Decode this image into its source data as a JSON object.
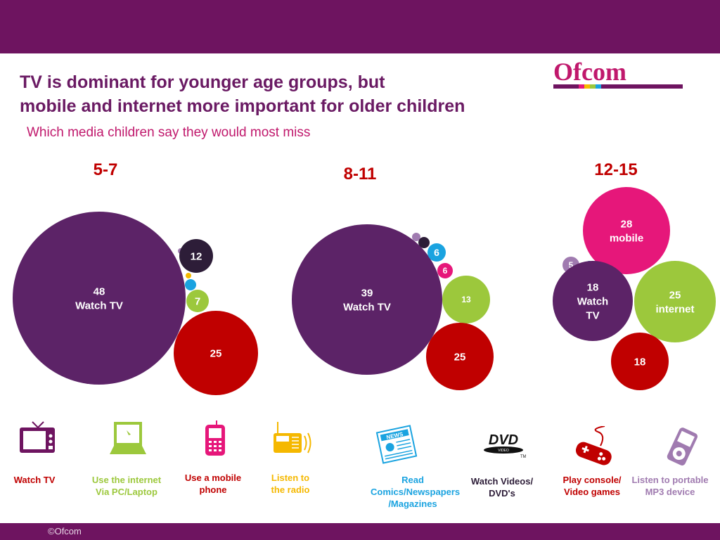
{
  "header": {
    "title_line1": "TV is dominant for younger age groups, but",
    "title_line2": "mobile and internet more important for older children",
    "subtitle": "Which media children say they would most miss",
    "logo_text": "Ofcom"
  },
  "footer": {
    "copyright": "©Ofcom"
  },
  "colors": {
    "watch_tv": "#5c2367",
    "internet": "#9cc83c",
    "mobile": "#e6177a",
    "radio": "#f5b800",
    "comics": "#1aa3e0",
    "dvd": "#2d1d38",
    "console": "#c00000",
    "mp3": "#a07bb0"
  },
  "chart_data": [
    {
      "type": "bubble",
      "group": "5-7",
      "series": [
        {
          "category": "Watch TV",
          "value": 48,
          "label": "48\nWatch TV"
        },
        {
          "category": "Watch Videos/DVD's",
          "value": 12,
          "label": "12"
        },
        {
          "category": "Use the internet Via PC/Laptop",
          "value": 7,
          "label": "7"
        },
        {
          "category": "Play console/Video games",
          "value": 25,
          "label": "25"
        }
      ]
    },
    {
      "type": "bubble",
      "group": "8-11",
      "series": [
        {
          "category": "Watch TV",
          "value": 39,
          "label": "39\nWatch TV"
        },
        {
          "category": "Read Comics/Newspapers/Magazines",
          "value": 6,
          "label": "6"
        },
        {
          "category": "Use a mobile phone",
          "value": 6,
          "label": "6"
        },
        {
          "category": "Use the internet Via PC/Laptop",
          "value": 13,
          "label": "13"
        },
        {
          "category": "Play console/Video games",
          "value": 25,
          "label": "25"
        }
      ]
    },
    {
      "type": "bubble",
      "group": "12-15",
      "series": [
        {
          "category": "Use a mobile phone",
          "value": 28,
          "label": "28\nmobile"
        },
        {
          "category": "Listen to portable MP3 device",
          "value": 5,
          "label": "5"
        },
        {
          "category": "Watch TV",
          "value": 18,
          "label": "18\nWatch\nTV"
        },
        {
          "category": "Use the internet Via PC/Laptop",
          "value": 25,
          "label": "25\ninternet"
        },
        {
          "category": "Play console/Video games",
          "value": 18,
          "label": "18"
        }
      ]
    }
  ],
  "legend": [
    {
      "key": "watch_tv",
      "label": "Watch TV",
      "icon": "tv-icon",
      "text_color": "#c00000"
    },
    {
      "key": "internet",
      "label": "Use the internet\nVia PC/Laptop",
      "icon": "laptop-icon",
      "text_color": "#9cc83c"
    },
    {
      "key": "mobile",
      "label": "Use a  mobile\nphone",
      "icon": "mobile-phone-icon",
      "text_color": "#c00000"
    },
    {
      "key": "radio",
      "label": "Listen to\nthe radio",
      "icon": "radio-icon",
      "text_color": "#f5b800"
    },
    {
      "key": "comics",
      "label": "Read\nComics/Newspapers\n/Magazines",
      "icon": "newspaper-icon",
      "text_color": "#1aa3e0"
    },
    {
      "key": "dvd",
      "label": "Watch Videos/\nDVD's",
      "icon": "dvd-icon",
      "text_color": "#2d1d38"
    },
    {
      "key": "console",
      "label": "Play console/\nVideo games",
      "icon": "gamepad-icon",
      "text_color": "#c00000"
    },
    {
      "key": "mp3",
      "label": "Listen to portable\nMP3 device",
      "icon": "mp3-player-icon",
      "text_color": "#a07bb0"
    }
  ]
}
